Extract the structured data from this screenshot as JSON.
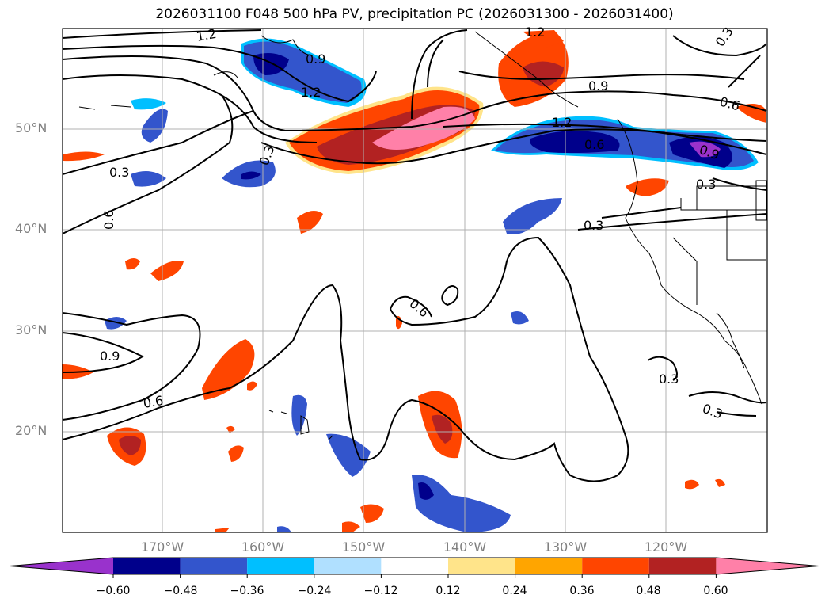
{
  "title": "2026031100 F048 500 hPa PV, precipitation PC (2026031300 - 2026031400)",
  "axes": {
    "lat_labels": [
      "50°N",
      "40°N",
      "30°N",
      "20°N"
    ],
    "lon_labels": [
      "170°W",
      "160°W",
      "150°W",
      "140°W",
      "130°W",
      "120°W"
    ]
  },
  "contour_labels": [
    {
      "text": "1.2"
    },
    {
      "text": "0.9"
    },
    {
      "text": "1.2"
    },
    {
      "text": "0.3"
    },
    {
      "text": "0.3"
    },
    {
      "text": "0.6"
    },
    {
      "text": "0.6"
    },
    {
      "text": "0.3"
    },
    {
      "text": "0.9"
    },
    {
      "text": "0.6"
    },
    {
      "text": "1.2"
    },
    {
      "text": "0.9"
    },
    {
      "text": "0.6"
    },
    {
      "text": "0.3"
    },
    {
      "text": "0.6"
    },
    {
      "text": "0.9"
    },
    {
      "text": "0.3"
    },
    {
      "text": "0.3"
    },
    {
      "text": "0.3"
    },
    {
      "text": "1.2"
    }
  ],
  "colorbar": {
    "ticks": [
      "−0.60",
      "−0.48",
      "−0.36",
      "−0.24",
      "−0.12",
      "0.12",
      "0.24",
      "0.36",
      "0.48",
      "0.60"
    ],
    "colors": [
      "#9932cc",
      "#00008b",
      "#3355cc",
      "#00bfff",
      "#b0e0ff",
      "#ffffff",
      "#ffe48a",
      "#ffa500",
      "#ff4500",
      "#b22222",
      "#ff80a8"
    ]
  },
  "colors": {
    "grid": "#b0b0b0",
    "land": "#000000",
    "contour": "#000000"
  }
}
